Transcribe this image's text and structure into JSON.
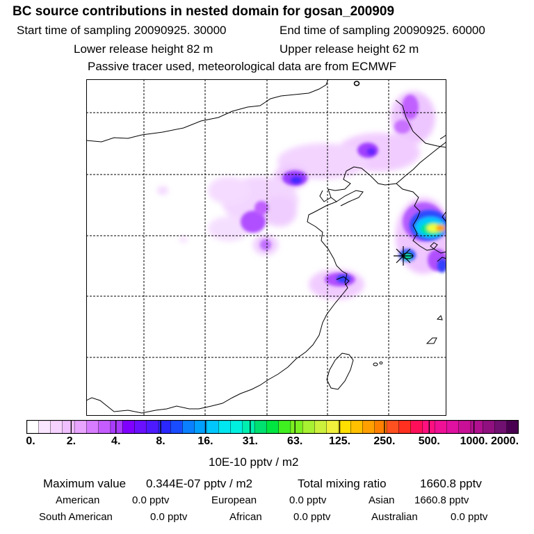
{
  "title": "BC  source contributions in nested domain for gosan_200909",
  "sampling": {
    "start": "Start time of sampling 20090925. 30000",
    "end": "End time of sampling 20090925. 60000"
  },
  "release": {
    "lower": "Lower release height   82 m",
    "upper": "Upper release height   62 m"
  },
  "tracer_note": "Passive tracer used, meteorological data are from ECMWF",
  "map": {
    "receptor_marker": "star",
    "colors": {
      "plume_light": "#e6a8ff",
      "plume_mid": "#b24cff",
      "plume_dark": "#8000ff",
      "blue": "#2a3cff",
      "cyan": "#00c8ff",
      "green": "#00e68c",
      "yellow": "#f0ff3c",
      "orange": "#ffa000",
      "coast": "#000000",
      "grid": "#000000"
    }
  },
  "colorbar": {
    "tick_labels": [
      "0.",
      "2.",
      "4.",
      "8.",
      "16.",
      "31.",
      "63.",
      "125.",
      "250.",
      "500.",
      "1000.",
      "2000."
    ],
    "units": "10E-10 pptv / m2",
    "colors": [
      "#ffffff",
      "#fbe6ff",
      "#f6d2ff",
      "#f0bfff",
      "#e9a4ff",
      "#d77cff",
      "#c55cff",
      "#a93cff",
      "#8000ff",
      "#6a10ff",
      "#4d1aff",
      "#2a28ff",
      "#1a4cff",
      "#0a80ff",
      "#00a0ff",
      "#00c8ff",
      "#00e6f0",
      "#00f0e0",
      "#00f0b0",
      "#00e070",
      "#00e640",
      "#40ef20",
      "#7cf020",
      "#a8f032",
      "#ccf03c",
      "#f0f03c",
      "#ffe000",
      "#ffc000",
      "#ffa000",
      "#ff8000",
      "#ff5020",
      "#ff3020",
      "#ff0f5a",
      "#ff1080",
      "#f01096",
      "#e010a0",
      "#c81096",
      "#b01090",
      "#901080",
      "#701070",
      "#4a0050"
    ]
  },
  "summary": {
    "max_label": "Maximum value",
    "max_value": "0.344E-07 pptv / m2",
    "total_label": "Total mixing ratio",
    "total_value": "1660.8 pptv",
    "regions": [
      {
        "name": "American",
        "value": "0.0 pptv"
      },
      {
        "name": "European",
        "value": "0.0 pptv"
      },
      {
        "name": "Asian",
        "value": "1660.8 pptv"
      },
      {
        "name": "South American",
        "value": "0.0 pptv"
      },
      {
        "name": "African",
        "value": "0.0 pptv"
      },
      {
        "name": "Australian",
        "value": "0.0 pptv"
      }
    ]
  }
}
